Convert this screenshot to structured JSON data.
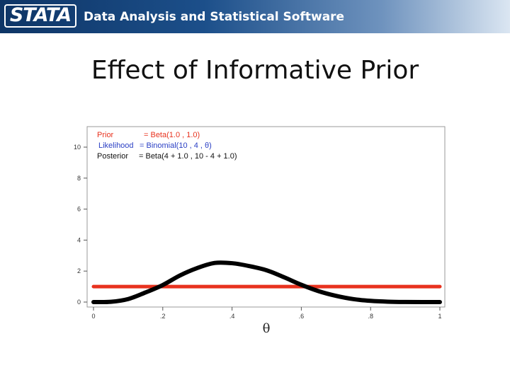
{
  "header": {
    "logo_text": "STATA",
    "tagline": "Data Analysis and Statistical Software"
  },
  "slide": {
    "title": "Effect of Informative Prior"
  },
  "chart_data": {
    "type": "line",
    "xlabel": "θ",
    "ylabel": "",
    "xlim": [
      0,
      1
    ],
    "ylim": [
      0,
      11
    ],
    "x_ticks": [
      0,
      0.2,
      0.4,
      0.6,
      0.8,
      1
    ],
    "x_tick_labels": [
      "0",
      ".2",
      ".4",
      ".6",
      ".8",
      "1"
    ],
    "y_ticks": [
      0,
      2,
      4,
      6,
      8,
      10
    ],
    "y_tick_labels": [
      "0",
      "2",
      "4",
      "6",
      "8",
      "10"
    ],
    "grid": false,
    "legend_position": "top-left",
    "legend": [
      {
        "label": "Prior",
        "expr": "= Beta(1.0 , 1.0)",
        "color": "#e8321e"
      },
      {
        "label": "Likelihood",
        "expr": "= Binomial(10 , 4 , θ)",
        "color": "#2a3fc4"
      },
      {
        "label": "Posterior",
        "expr": "= Beta(4 + 1.0 , 10 - 4 + 1.0)",
        "color": "#111111"
      }
    ],
    "series": [
      {
        "name": "Prior",
        "color": "#e8321e",
        "x": [
          0,
          0.1,
          0.2,
          0.3,
          0.4,
          0.5,
          0.6,
          0.7,
          0.8,
          0.9,
          1
        ],
        "y": [
          1,
          1,
          1,
          1,
          1,
          1,
          1,
          1,
          1,
          1,
          1
        ]
      },
      {
        "name": "Posterior",
        "color": "#000000",
        "x": [
          0,
          0.05,
          0.1,
          0.15,
          0.2,
          0.25,
          0.3,
          0.35,
          0.4,
          0.45,
          0.5,
          0.55,
          0.6,
          0.65,
          0.7,
          0.75,
          0.8,
          0.85,
          0.9,
          0.95,
          1
        ],
        "y": [
          0,
          0.016,
          0.194,
          0.618,
          1.101,
          1.722,
          2.201,
          2.525,
          2.508,
          2.322,
          2.051,
          1.602,
          1.115,
          0.702,
          0.401,
          0.19,
          0.079,
          0.025,
          0.005,
          0.0003,
          0
        ]
      }
    ]
  }
}
